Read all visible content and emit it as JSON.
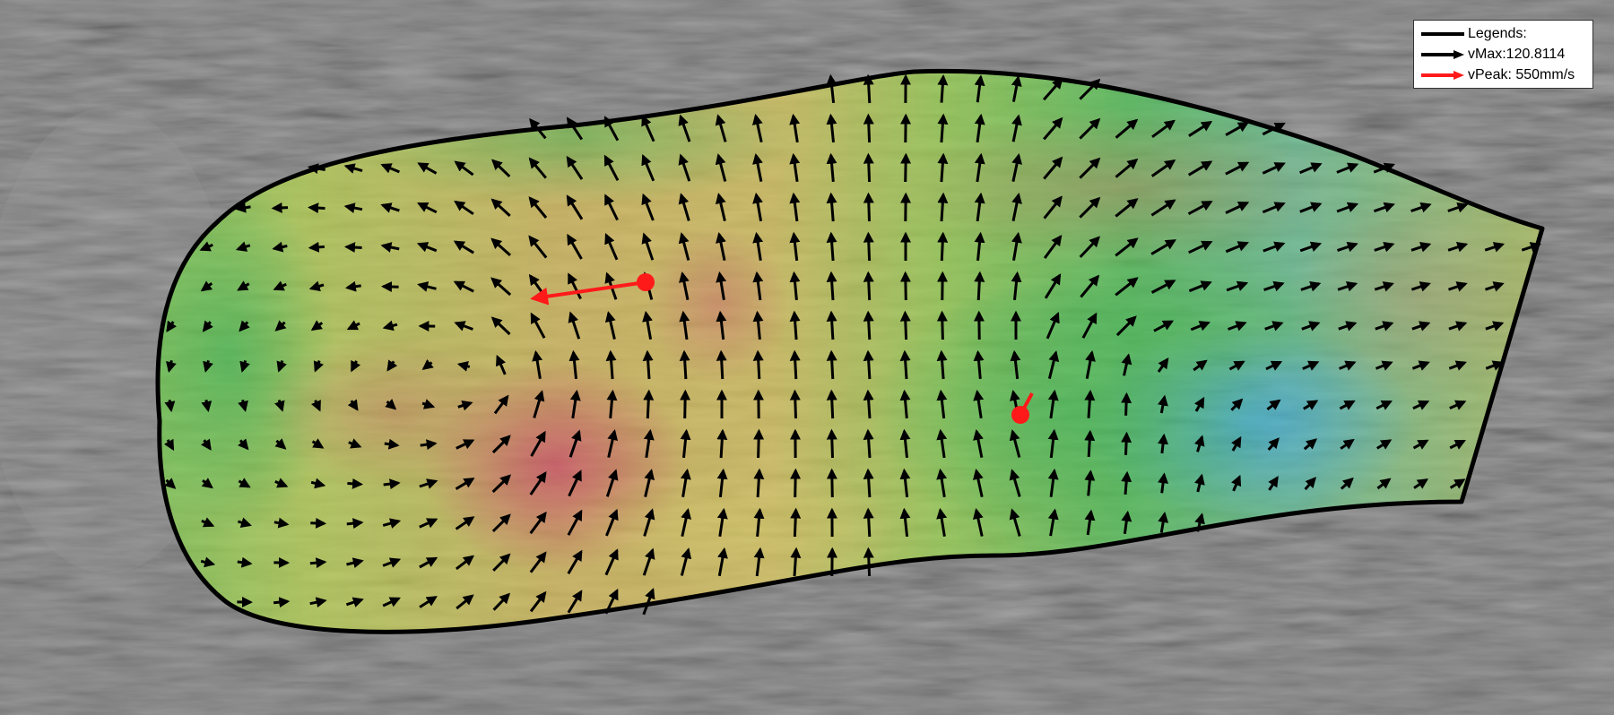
{
  "colors": {
    "background": "#4a4a4a",
    "contour": "#000000",
    "vector": "#000000",
    "peak_vector": "#ff1a1a",
    "velocity_scale": [
      "#3fa8c9",
      "#3db04a",
      "#8cc43e",
      "#c9be58",
      "#c98a52",
      "#c9505a"
    ]
  },
  "legend": {
    "title": "Legends:",
    "items": [
      {
        "label": "vMax:120.8114",
        "color": "#000000",
        "icon": "black-arrow-icon"
      },
      {
        "label": "vPeak: 550mm/s",
        "color": "#ff1a1a",
        "icon": "red-arrow-icon"
      }
    ]
  }
}
